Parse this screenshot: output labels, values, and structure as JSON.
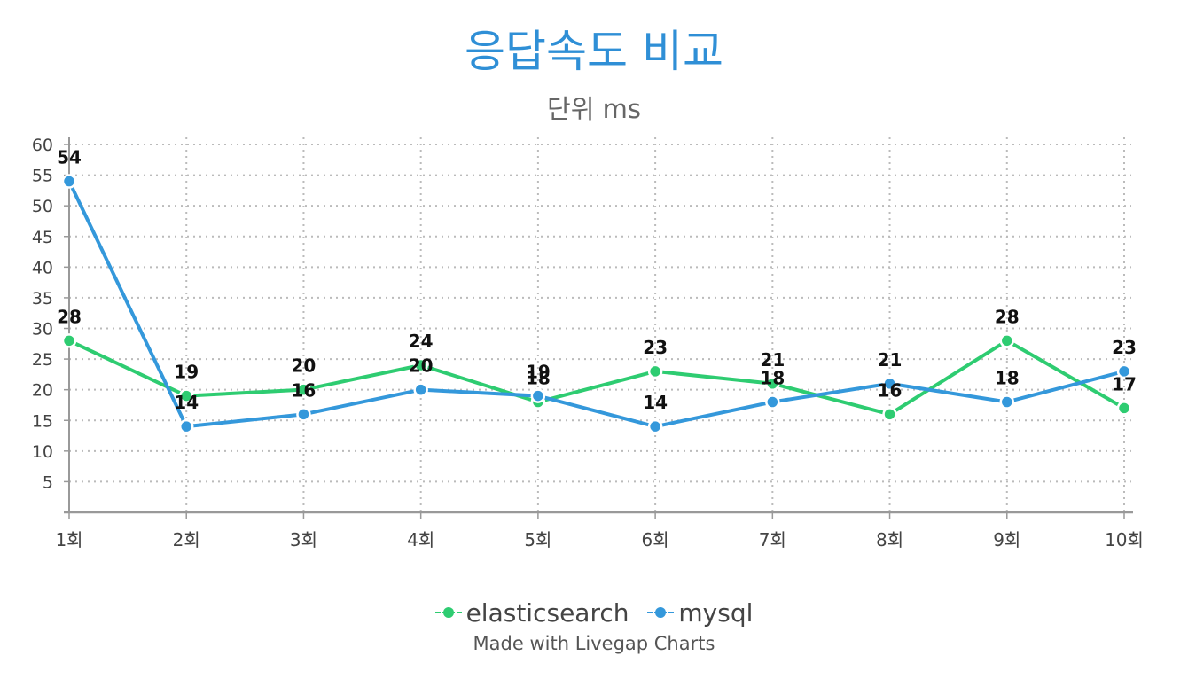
{
  "chart_data": {
    "type": "line",
    "title": "응답속도 비교",
    "subtitle": "단위 ms",
    "categories": [
      "1회",
      "2회",
      "3회",
      "4회",
      "5회",
      "6회",
      "7회",
      "8회",
      "9회",
      "10회"
    ],
    "yticks": [
      5,
      10,
      15,
      20,
      25,
      30,
      35,
      40,
      45,
      50,
      55,
      60
    ],
    "ylim": [
      0,
      60
    ],
    "grid": true,
    "legend_position": "bottom",
    "series": [
      {
        "name": "elasticsearch",
        "color": "#2ecc71",
        "values": [
          28,
          19,
          20,
          24,
          18,
          23,
          21,
          16,
          28,
          17
        ]
      },
      {
        "name": "mysql",
        "color": "#3498db",
        "values": [
          54,
          14,
          16,
          20,
          19,
          14,
          18,
          21,
          18,
          23
        ]
      }
    ]
  },
  "credit": "Made with Livegap Charts"
}
